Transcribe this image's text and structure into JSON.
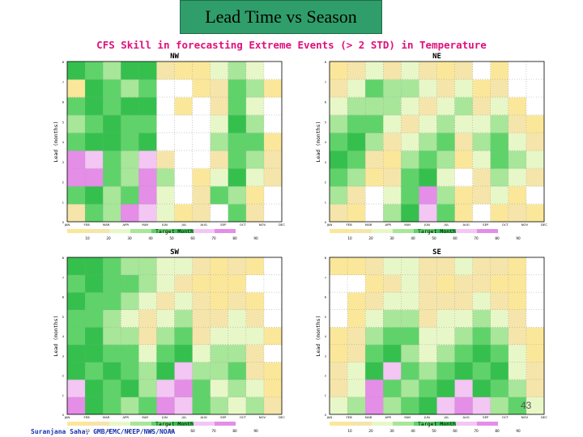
{
  "slide": {
    "title": "Lead Time vs Season",
    "subtitle": "CFS Skill in forecasting Extreme Events (> 2 STD) in Temperature",
    "credit": "Suranjana Saha, GMB/EMC/NCEP/NWS/NOAA",
    "page_number": "43"
  },
  "colors": {
    "title_bg": "#2f9e6a",
    "subtitle": "#e0107a",
    "credit": "#1a33b3",
    "levels": [
      "#ffffff",
      "#fbe79a",
      "#f5e5aa",
      "#e8f7c8",
      "#a8e69a",
      "#5fd36a",
      "#35c04e",
      "#f3c6f3",
      "#e48ee7"
    ]
  },
  "chart_data": [
    {
      "type": "heatmap",
      "title": "NW",
      "xlabel": "Target Month",
      "ylabel": "Lead (months)",
      "x_ticks": [
        "JAN",
        "FEB",
        "MAR",
        "APR",
        "MAY",
        "JUN",
        "JUL",
        "AUG",
        "SEP",
        "OCT",
        "NOV",
        "DEC"
      ],
      "y_ticks": [
        "0",
        "1",
        "2",
        "3",
        "4",
        "5",
        "6",
        "7",
        "8"
      ],
      "ylim": [
        0,
        8
      ],
      "colorbar_labels": [
        "10",
        "20",
        "30",
        "40",
        "50",
        "60",
        "70",
        "80",
        "90"
      ],
      "values": [
        [
          2,
          5,
          4,
          8,
          7,
          3,
          1,
          2,
          0,
          5,
          2,
          0
        ],
        [
          5,
          6,
          4,
          5,
          8,
          3,
          0,
          2,
          5,
          4,
          1,
          0
        ],
        [
          8,
          8,
          5,
          4,
          8,
          4,
          0,
          1,
          3,
          6,
          3,
          2
        ],
        [
          8,
          7,
          5,
          4,
          7,
          2,
          0,
          0,
          2,
          5,
          4,
          2
        ],
        [
          5,
          6,
          6,
          5,
          6,
          0,
          0,
          0,
          4,
          5,
          5,
          1
        ],
        [
          4,
          5,
          6,
          5,
          5,
          0,
          0,
          0,
          3,
          6,
          4,
          0
        ],
        [
          5,
          6,
          5,
          6,
          6,
          0,
          1,
          0,
          2,
          5,
          3,
          0
        ],
        [
          1,
          6,
          5,
          4,
          5,
          0,
          0,
          1,
          2,
          5,
          4,
          1
        ],
        [
          6,
          5,
          4,
          6,
          6,
          2,
          1,
          1,
          3,
          4,
          3,
          0
        ]
      ]
    },
    {
      "type": "heatmap",
      "title": "NE",
      "xlabel": "Target Month",
      "ylabel": "Lead (months)",
      "x_ticks": [
        "JAN",
        "FEB",
        "MAR",
        "APR",
        "MAY",
        "JUN",
        "JUL",
        "AUG",
        "SEP",
        "OCT",
        "NOV",
        "DEC"
      ],
      "y_ticks": [
        "0",
        "1",
        "2",
        "3",
        "4",
        "5",
        "6",
        "7",
        "8"
      ],
      "ylim": [
        0,
        8
      ],
      "colorbar_labels": [
        "10",
        "20",
        "30",
        "40",
        "50",
        "60",
        "70",
        "80",
        "90"
      ],
      "values": [
        [
          2,
          1,
          0,
          4,
          6,
          7,
          5,
          1,
          0,
          1,
          2,
          1
        ],
        [
          4,
          2,
          0,
          3,
          5,
          8,
          4,
          1,
          2,
          3,
          1,
          0
        ],
        [
          5,
          4,
          1,
          2,
          5,
          6,
          3,
          0,
          2,
          4,
          3,
          2
        ],
        [
          6,
          5,
          2,
          1,
          4,
          5,
          4,
          1,
          3,
          5,
          4,
          3
        ],
        [
          5,
          6,
          4,
          2,
          3,
          4,
          5,
          2,
          4,
          5,
          3,
          2
        ],
        [
          4,
          5,
          5,
          3,
          2,
          3,
          4,
          3,
          3,
          4,
          2,
          1
        ],
        [
          3,
          4,
          4,
          4,
          3,
          2,
          3,
          4,
          2,
          3,
          1,
          0
        ],
        [
          2,
          3,
          5,
          4,
          4,
          3,
          2,
          3,
          1,
          2,
          0,
          0
        ],
        [
          1,
          2,
          3,
          2,
          3,
          2,
          1,
          2,
          0,
          1,
          0,
          0
        ]
      ]
    },
    {
      "type": "heatmap",
      "title": "SW",
      "xlabel": "Target Month",
      "ylabel": "Lead (months)",
      "x_ticks": [
        "JAN",
        "FEB",
        "MAR",
        "APR",
        "MAY",
        "JUN",
        "JUL",
        "AUG",
        "SEP",
        "OCT",
        "NOV",
        "DEC"
      ],
      "y_ticks": [
        "0",
        "1",
        "2",
        "3",
        "4",
        "5",
        "6",
        "7",
        "8"
      ],
      "ylim": [
        0,
        8
      ],
      "colorbar_labels": [
        "10",
        "20",
        "30",
        "40",
        "50",
        "60",
        "70",
        "80",
        "90"
      ],
      "values": [
        [
          8,
          6,
          5,
          4,
          5,
          8,
          7,
          5,
          4,
          3,
          4,
          2
        ],
        [
          7,
          6,
          5,
          6,
          4,
          7,
          8,
          5,
          3,
          4,
          3,
          1
        ],
        [
          6,
          5,
          6,
          5,
          4,
          6,
          7,
          4,
          4,
          5,
          2,
          1
        ],
        [
          6,
          6,
          5,
          5,
          3,
          5,
          6,
          3,
          4,
          4,
          2,
          0
        ],
        [
          5,
          6,
          4,
          4,
          2,
          4,
          5,
          2,
          3,
          3,
          3,
          1
        ],
        [
          5,
          5,
          4,
          3,
          2,
          3,
          4,
          2,
          2,
          3,
          2,
          0
        ],
        [
          6,
          5,
          5,
          4,
          3,
          2,
          3,
          2,
          1,
          2,
          1,
          0
        ],
        [
          5,
          6,
          5,
          5,
          4,
          3,
          2,
          1,
          1,
          1,
          0,
          0
        ],
        [
          6,
          6,
          5,
          4,
          4,
          3,
          3,
          2,
          1,
          2,
          1,
          0
        ]
      ]
    },
    {
      "type": "heatmap",
      "title": "SE",
      "xlabel": "Target Month",
      "ylabel": "Lead (months)",
      "x_ticks": [
        "JAN",
        "FEB",
        "MAR",
        "APR",
        "MAY",
        "JUN",
        "JUL",
        "AUG",
        "SEP",
        "OCT",
        "NOV",
        "DEC"
      ],
      "y_ticks": [
        "0",
        "1",
        "2",
        "3",
        "4",
        "5",
        "6",
        "7",
        "8"
      ],
      "ylim": [
        0,
        8
      ],
      "colorbar_labels": [
        "10",
        "20",
        "30",
        "40",
        "50",
        "60",
        "70",
        "80",
        "90"
      ],
      "values": [
        [
          3,
          4,
          8,
          4,
          5,
          6,
          7,
          8,
          7,
          4,
          5,
          3
        ],
        [
          2,
          3,
          8,
          5,
          4,
          5,
          6,
          7,
          6,
          5,
          4,
          2
        ],
        [
          2,
          3,
          6,
          7,
          5,
          4,
          5,
          6,
          5,
          6,
          3,
          2
        ],
        [
          1,
          2,
          5,
          6,
          4,
          3,
          4,
          5,
          6,
          5,
          3,
          1
        ],
        [
          1,
          2,
          4,
          5,
          5,
          3,
          3,
          4,
          5,
          4,
          2,
          1
        ],
        [
          0,
          1,
          3,
          4,
          4,
          2,
          3,
          3,
          4,
          3,
          2,
          0
        ],
        [
          0,
          1,
          2,
          3,
          3,
          2,
          2,
          2,
          3,
          2,
          1,
          0
        ],
        [
          0,
          0,
          1,
          2,
          3,
          2,
          1,
          2,
          2,
          1,
          1,
          0
        ],
        [
          1,
          1,
          2,
          3,
          3,
          2,
          2,
          3,
          2,
          2,
          1,
          0
        ]
      ]
    }
  ]
}
